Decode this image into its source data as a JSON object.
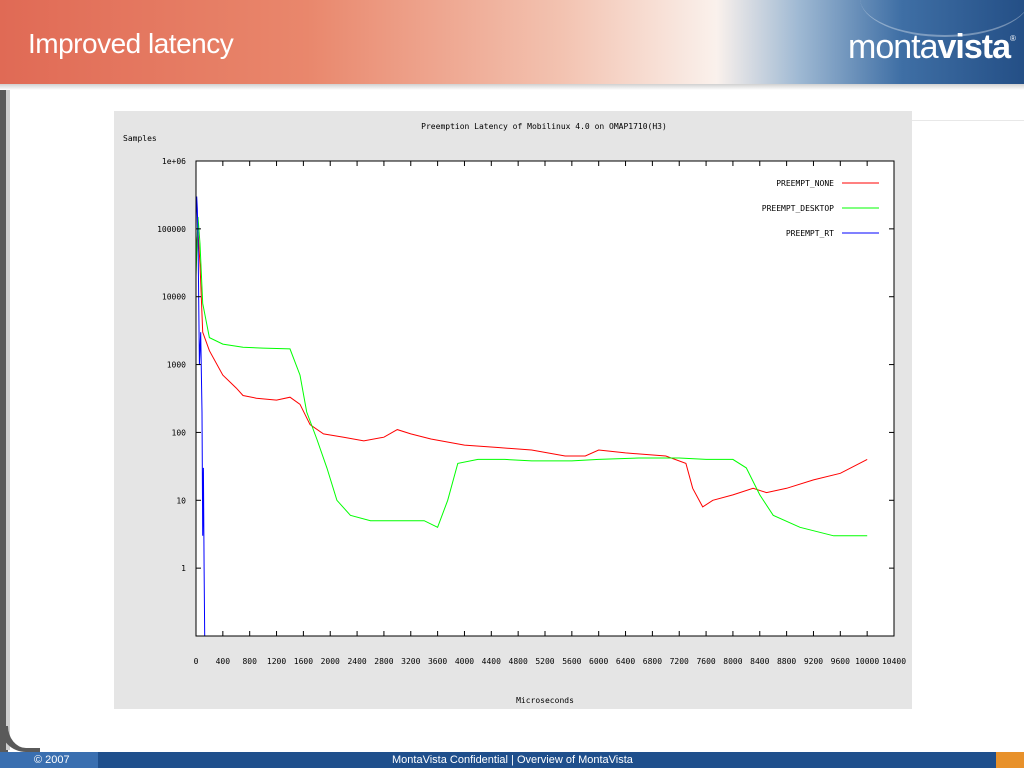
{
  "slide": {
    "title": "Improved latency",
    "logo_light": "monta",
    "logo_bold": "vista",
    "logo_tm": "®"
  },
  "footer": {
    "copyright": "© 2007",
    "center_text": "MontaVista Confidential  |  Overview of MontaVista"
  },
  "colors": {
    "none": "#ff0000",
    "desktop": "#00ff00",
    "rt": "#0000ff",
    "plot_bg": "#ffffff",
    "frame_bg": "#e5e5e5"
  },
  "chart_data": {
    "type": "line",
    "title": "Preemption Latency of Mobilinux 4.0 on OMAP1710(H3)",
    "xlabel": "Microseconds",
    "ylabel": "Samples",
    "xlim": [
      0,
      10400
    ],
    "ylim": [
      0.1,
      1000000
    ],
    "yscale": "log",
    "grid": false,
    "legend_position": "top-right",
    "xticks": [
      "0",
      "400",
      "800",
      "1200",
      "1600",
      "2000",
      "2400",
      "2800",
      "3200",
      "3600",
      "4000",
      "4400",
      "4800",
      "5200",
      "5600",
      "6000",
      "6400",
      "6800",
      "7200",
      "7600",
      "8000",
      "8400",
      "8800",
      "9200",
      "9600",
      "10000",
      "10400"
    ],
    "yticks": [
      {
        "value": 1,
        "label": "1"
      },
      {
        "value": 10,
        "label": "10"
      },
      {
        "value": 100,
        "label": "100"
      },
      {
        "value": 1000,
        "label": "1000"
      },
      {
        "value": 10000,
        "label": "10000"
      },
      {
        "value": 100000,
        "label": "100000"
      },
      {
        "value": 1000000,
        "label": "1e+06"
      }
    ],
    "series": [
      {
        "name": "PREEMPT_NONE",
        "color": "#ff0000",
        "points": [
          [
            0,
            50000
          ],
          [
            30,
            90000
          ],
          [
            60,
            30000
          ],
          [
            100,
            3000
          ],
          [
            200,
            1600
          ],
          [
            400,
            700
          ],
          [
            600,
            450
          ],
          [
            700,
            350
          ],
          [
            900,
            320
          ],
          [
            1200,
            300
          ],
          [
            1400,
            330
          ],
          [
            1550,
            260
          ],
          [
            1700,
            130
          ],
          [
            1900,
            95
          ],
          [
            2200,
            85
          ],
          [
            2500,
            75
          ],
          [
            2800,
            85
          ],
          [
            3000,
            110
          ],
          [
            3200,
            95
          ],
          [
            3500,
            80
          ],
          [
            4000,
            65
          ],
          [
            4500,
            60
          ],
          [
            5000,
            55
          ],
          [
            5500,
            45
          ],
          [
            5800,
            45
          ],
          [
            6000,
            55
          ],
          [
            6400,
            50
          ],
          [
            7000,
            45
          ],
          [
            7300,
            35
          ],
          [
            7400,
            15
          ],
          [
            7550,
            8
          ],
          [
            7700,
            10
          ],
          [
            8000,
            12
          ],
          [
            8300,
            15
          ],
          [
            8500,
            13
          ],
          [
            8800,
            15
          ],
          [
            9200,
            20
          ],
          [
            9600,
            25
          ],
          [
            10000,
            40
          ]
        ]
      },
      {
        "name": "PREEMPT_DESKTOP",
        "color": "#00ff00",
        "points": [
          [
            0,
            20000
          ],
          [
            30,
            150000
          ],
          [
            60,
            60000
          ],
          [
            100,
            8000
          ],
          [
            200,
            2500
          ],
          [
            400,
            2000
          ],
          [
            700,
            1800
          ],
          [
            1000,
            1750
          ],
          [
            1400,
            1700
          ],
          [
            1550,
            700
          ],
          [
            1650,
            200
          ],
          [
            1800,
            80
          ],
          [
            1950,
            30
          ],
          [
            2100,
            10
          ],
          [
            2300,
            6
          ],
          [
            2600,
            5
          ],
          [
            3000,
            5
          ],
          [
            3400,
            5
          ],
          [
            3600,
            4
          ],
          [
            3750,
            10
          ],
          [
            3900,
            35
          ],
          [
            4200,
            40
          ],
          [
            4600,
            40
          ],
          [
            5000,
            38
          ],
          [
            5600,
            38
          ],
          [
            6000,
            40
          ],
          [
            6600,
            42
          ],
          [
            7200,
            42
          ],
          [
            7600,
            40
          ],
          [
            8000,
            40
          ],
          [
            8200,
            30
          ],
          [
            8400,
            12
          ],
          [
            8600,
            6
          ],
          [
            9000,
            4
          ],
          [
            9500,
            3
          ],
          [
            10000,
            3
          ]
        ]
      },
      {
        "name": "PREEMPT_RT",
        "color": "#0000ff",
        "points": [
          [
            0,
            100000
          ],
          [
            10,
            300000
          ],
          [
            20,
            200000
          ],
          [
            30,
            80000
          ],
          [
            50,
            1000
          ],
          [
            70,
            3000
          ],
          [
            90,
            200
          ],
          [
            100,
            3
          ],
          [
            110,
            30
          ],
          [
            120,
            1
          ],
          [
            130,
            0.1
          ]
        ]
      }
    ]
  }
}
